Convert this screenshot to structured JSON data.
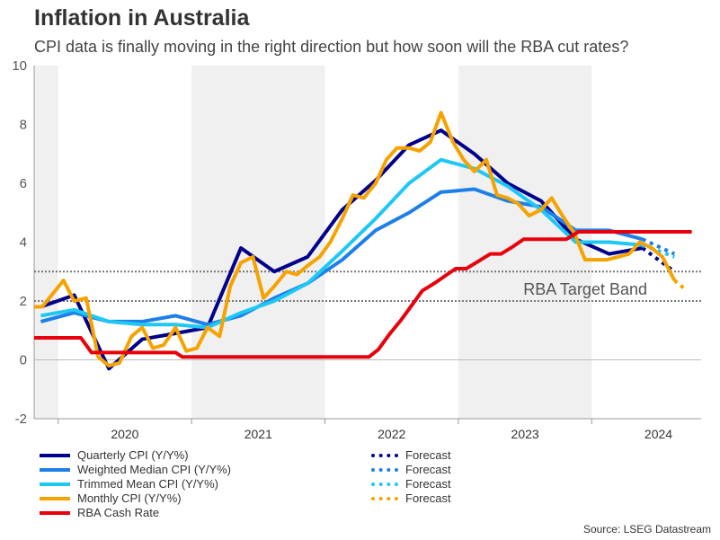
{
  "title": "Inflation in Australia",
  "subtitle": "CPI data is finally moving in the right direction but how soon will the RBA cut rates?",
  "source": "Source: LSEG Datastream",
  "chart_data": {
    "type": "line",
    "xlim": [
      2019.82,
      2024.82
    ],
    "ylim": [
      -2,
      10
    ],
    "yticks": [
      -2,
      0,
      2,
      4,
      6,
      8,
      10
    ],
    "xtick_labels": [
      "2020",
      "2021",
      "2022",
      "2023",
      "2024"
    ],
    "shaded_years": [
      2019,
      2021,
      2023
    ],
    "annotation": "RBA Target Band",
    "target_band": [
      2,
      3
    ],
    "series": [
      {
        "name": "Quarterly CPI (Y/Y%)",
        "color": "#00008b",
        "points": [
          [
            2019.87,
            1.8
          ],
          [
            2020.12,
            2.2
          ],
          [
            2020.38,
            -0.3
          ],
          [
            2020.63,
            0.7
          ],
          [
            2020.88,
            0.9
          ],
          [
            2021.12,
            1.1
          ],
          [
            2021.37,
            3.8
          ],
          [
            2021.62,
            3.0
          ],
          [
            2021.87,
            3.5
          ],
          [
            2022.13,
            5.1
          ],
          [
            2022.38,
            6.1
          ],
          [
            2022.63,
            7.3
          ],
          [
            2022.87,
            7.8
          ],
          [
            2023.12,
            7.0
          ],
          [
            2023.37,
            6.0
          ],
          [
            2023.62,
            5.4
          ],
          [
            2023.88,
            4.1
          ],
          [
            2024.13,
            3.6
          ],
          [
            2024.38,
            3.8
          ]
        ],
        "forecast_name": "Forecast",
        "forecast": [
          [
            2024.38,
            3.8
          ],
          [
            2024.62,
            3.0
          ]
        ]
      },
      {
        "name": "Weighted Median CPI (Y/Y%)",
        "color": "#1e7fe8",
        "points": [
          [
            2019.87,
            1.3
          ],
          [
            2020.12,
            1.6
          ],
          [
            2020.38,
            1.3
          ],
          [
            2020.63,
            1.3
          ],
          [
            2020.88,
            1.5
          ],
          [
            2021.12,
            1.2
          ],
          [
            2021.37,
            1.5
          ],
          [
            2021.62,
            2.1
          ],
          [
            2021.87,
            2.6
          ],
          [
            2022.13,
            3.4
          ],
          [
            2022.38,
            4.4
          ],
          [
            2022.63,
            5.0
          ],
          [
            2022.87,
            5.7
          ],
          [
            2023.12,
            5.8
          ],
          [
            2023.37,
            5.4
          ],
          [
            2023.62,
            5.2
          ],
          [
            2023.88,
            4.4
          ],
          [
            2024.13,
            4.4
          ],
          [
            2024.38,
            4.1
          ]
        ],
        "forecast_name": "Forecast",
        "forecast": [
          [
            2024.38,
            4.1
          ],
          [
            2024.62,
            3.6
          ]
        ]
      },
      {
        "name": "Trimmed Mean CPI (Y/Y%)",
        "color": "#1ec8f5",
        "points": [
          [
            2019.87,
            1.5
          ],
          [
            2020.12,
            1.7
          ],
          [
            2020.38,
            1.3
          ],
          [
            2020.63,
            1.2
          ],
          [
            2020.88,
            1.2
          ],
          [
            2021.12,
            1.1
          ],
          [
            2021.37,
            1.6
          ],
          [
            2021.62,
            2.0
          ],
          [
            2021.87,
            2.6
          ],
          [
            2022.13,
            3.7
          ],
          [
            2022.38,
            4.8
          ],
          [
            2022.63,
            6.0
          ],
          [
            2022.87,
            6.8
          ],
          [
            2023.12,
            6.5
          ],
          [
            2023.37,
            5.9
          ],
          [
            2023.62,
            5.1
          ],
          [
            2023.88,
            4.0
          ],
          [
            2024.13,
            4.0
          ],
          [
            2024.38,
            3.9
          ]
        ],
        "forecast_name": "Forecast",
        "forecast": [
          [
            2024.38,
            3.9
          ],
          [
            2024.62,
            3.5
          ]
        ]
      },
      {
        "name": "Monthly CPI (Y/Y%)",
        "color": "#f5a300",
        "points": [
          [
            2019.82,
            1.8
          ],
          [
            2019.88,
            1.8
          ],
          [
            2020.04,
            2.7
          ],
          [
            2020.12,
            2.0
          ],
          [
            2020.21,
            2.1
          ],
          [
            2020.3,
            0.1
          ],
          [
            2020.38,
            -0.2
          ],
          [
            2020.46,
            -0.1
          ],
          [
            2020.55,
            0.8
          ],
          [
            2020.63,
            1.1
          ],
          [
            2020.71,
            0.4
          ],
          [
            2020.79,
            0.5
          ],
          [
            2020.88,
            1.1
          ],
          [
            2020.96,
            0.3
          ],
          [
            2021.04,
            0.4
          ],
          [
            2021.12,
            1.1
          ],
          [
            2021.21,
            0.8
          ],
          [
            2021.29,
            2.5
          ],
          [
            2021.37,
            3.3
          ],
          [
            2021.46,
            3.5
          ],
          [
            2021.54,
            2.1
          ],
          [
            2021.62,
            2.5
          ],
          [
            2021.71,
            3.0
          ],
          [
            2021.79,
            2.9
          ],
          [
            2021.87,
            3.2
          ],
          [
            2021.96,
            3.5
          ],
          [
            2022.04,
            4.0
          ],
          [
            2022.13,
            4.8
          ],
          [
            2022.21,
            5.6
          ],
          [
            2022.29,
            5.5
          ],
          [
            2022.38,
            6.0
          ],
          [
            2022.46,
            6.8
          ],
          [
            2022.54,
            7.2
          ],
          [
            2022.63,
            7.2
          ],
          [
            2022.71,
            7.1
          ],
          [
            2022.79,
            7.4
          ],
          [
            2022.87,
            8.4
          ],
          [
            2022.96,
            7.4
          ],
          [
            2023.04,
            6.8
          ],
          [
            2023.12,
            6.4
          ],
          [
            2023.21,
            6.8
          ],
          [
            2023.29,
            5.6
          ],
          [
            2023.37,
            5.5
          ],
          [
            2023.45,
            5.3
          ],
          [
            2023.53,
            4.9
          ],
          [
            2023.62,
            5.1
          ],
          [
            2023.7,
            5.5
          ],
          [
            2023.78,
            4.9
          ],
          [
            2023.87,
            4.3
          ],
          [
            2023.95,
            3.4
          ],
          [
            2024.03,
            3.4
          ],
          [
            2024.11,
            3.4
          ],
          [
            2024.2,
            3.5
          ],
          [
            2024.28,
            3.6
          ],
          [
            2024.36,
            4.0
          ],
          [
            2024.45,
            3.8
          ],
          [
            2024.53,
            3.5
          ],
          [
            2024.62,
            2.7
          ]
        ],
        "forecast_name": "Forecast",
        "forecast": [
          [
            2024.62,
            2.7
          ],
          [
            2024.7,
            2.4
          ]
        ]
      },
      {
        "name": "RBA Cash Rate",
        "color": "#e8000b",
        "points": [
          [
            2019.82,
            0.75
          ],
          [
            2020.17,
            0.75
          ],
          [
            2020.25,
            0.25
          ],
          [
            2020.88,
            0.25
          ],
          [
            2020.93,
            0.1
          ],
          [
            2022.33,
            0.1
          ],
          [
            2022.4,
            0.35
          ],
          [
            2022.48,
            0.85
          ],
          [
            2022.57,
            1.35
          ],
          [
            2022.65,
            1.85
          ],
          [
            2022.73,
            2.35
          ],
          [
            2022.82,
            2.6
          ],
          [
            2022.9,
            2.85
          ],
          [
            2022.98,
            3.1
          ],
          [
            2023.06,
            3.1
          ],
          [
            2023.15,
            3.35
          ],
          [
            2023.24,
            3.6
          ],
          [
            2023.32,
            3.6
          ],
          [
            2023.41,
            3.85
          ],
          [
            2023.49,
            4.1
          ],
          [
            2023.81,
            4.1
          ],
          [
            2023.9,
            4.35
          ],
          [
            2024.75,
            4.35
          ]
        ]
      }
    ]
  }
}
